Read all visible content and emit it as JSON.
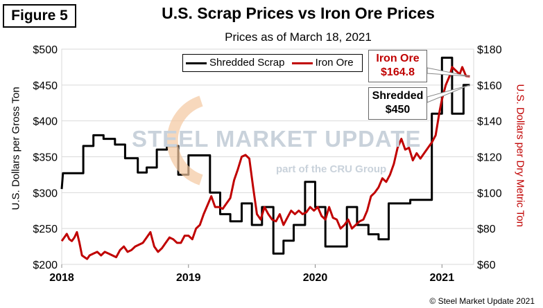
{
  "figure_label": "Figure 5",
  "copyright": "© Steel Market Update 2021",
  "watermark": {
    "brand": "STEEL MARKET UPDATE",
    "tagline": "part of the CRU Group"
  },
  "colors": {
    "scrap": "#000000",
    "ore": "#c00000",
    "grid": "#d9d9d9"
  },
  "callouts": {
    "ore": {
      "name": "Iron Ore",
      "value": "$164.8"
    },
    "scrap": {
      "name": "Shredded",
      "value": "$450"
    }
  },
  "chart_data": {
    "type": "line",
    "title": "U.S. Scrap Prices vs Iron Ore Prices",
    "subtitle": "Prices as of March 18, 2021",
    "ylabel": "U.S. Dollars per Gross Ton",
    "y2label": "U.S. Dollars per Dry Metric Ton",
    "xlim": [
      2018.0,
      2021.25
    ],
    "ylim": [
      200,
      500
    ],
    "y2lim": [
      60,
      180
    ],
    "x_ticks": [
      2018,
      2019,
      2020,
      2021
    ],
    "x_tick_labels": [
      "2018",
      "2019",
      "2020",
      "2021"
    ],
    "y_ticks": [
      200,
      250,
      300,
      350,
      400,
      450,
      500
    ],
    "y_tick_labels": [
      "$200",
      "$250",
      "$300",
      "$350",
      "$400",
      "$450",
      "$500"
    ],
    "y2_ticks": [
      60,
      80,
      100,
      120,
      140,
      160,
      180
    ],
    "y2_tick_labels": [
      "$60",
      "$80",
      "$100",
      "$120",
      "$140",
      "$160",
      "$180"
    ],
    "legend": [
      "Shredded Scrap",
      "Iron Ore"
    ],
    "series": [
      {
        "name": "Shredded Scrap",
        "axis": "left",
        "x": [
          2018.0,
          2018.01,
          2018.17,
          2018.17,
          2018.25,
          2018.25,
          2018.33,
          2018.33,
          2018.42,
          2018.42,
          2018.5,
          2018.5,
          2018.6,
          2018.6,
          2018.67,
          2018.67,
          2018.75,
          2018.75,
          2018.83,
          2018.83,
          2018.92,
          2018.92,
          2019.0,
          2019.0,
          2019.17,
          2019.17,
          2019.25,
          2019.25,
          2019.33,
          2019.33,
          2019.42,
          2019.42,
          2019.5,
          2019.5,
          2019.58,
          2019.58,
          2019.67,
          2019.67,
          2019.75,
          2019.75,
          2019.83,
          2019.83,
          2019.92,
          2019.92,
          2020.0,
          2020.0,
          2020.08,
          2020.08,
          2020.25,
          2020.25,
          2020.33,
          2020.33,
          2020.42,
          2020.42,
          2020.5,
          2020.5,
          2020.58,
          2020.58,
          2020.67,
          2020.67,
          2020.75,
          2020.75,
          2020.92,
          2020.92,
          2021.0,
          2021.0,
          2021.08,
          2021.08,
          2021.17,
          2021.17,
          2021.22
        ],
        "values": [
          305,
          327,
          327,
          365,
          365,
          380,
          380,
          375,
          375,
          367,
          367,
          348,
          348,
          328,
          328,
          335,
          335,
          360,
          360,
          365,
          365,
          325,
          325,
          352,
          352,
          300,
          300,
          270,
          270,
          260,
          260,
          285,
          285,
          255,
          255,
          280,
          280,
          215,
          215,
          233,
          233,
          255,
          255,
          315,
          315,
          280,
          280,
          225,
          225,
          280,
          280,
          255,
          255,
          242,
          242,
          235,
          235,
          285,
          285,
          285,
          285,
          290,
          290,
          410,
          410,
          488,
          488,
          410,
          410,
          450,
          450
        ]
      },
      {
        "name": "Iron Ore",
        "axis": "right",
        "x": [
          2018.0,
          2018.02,
          2018.04,
          2018.06,
          2018.08,
          2018.1,
          2018.12,
          2018.14,
          2018.16,
          2018.18,
          2018.2,
          2018.22,
          2018.25,
          2018.28,
          2018.31,
          2018.34,
          2018.37,
          2018.4,
          2018.43,
          2018.46,
          2018.49,
          2018.52,
          2018.55,
          2018.58,
          2018.61,
          2018.64,
          2018.67,
          2018.7,
          2018.73,
          2018.76,
          2018.79,
          2018.82,
          2018.85,
          2018.88,
          2018.91,
          2018.94,
          2018.97,
          2019.0,
          2019.03,
          2019.06,
          2019.09,
          2019.12,
          2019.15,
          2019.18,
          2019.21,
          2019.24,
          2019.27,
          2019.3,
          2019.33,
          2019.36,
          2019.39,
          2019.42,
          2019.45,
          2019.48,
          2019.51,
          2019.54,
          2019.57,
          2019.6,
          2019.63,
          2019.66,
          2019.69,
          2019.72,
          2019.75,
          2019.78,
          2019.81,
          2019.84,
          2019.87,
          2019.9,
          2019.93,
          2019.96,
          2019.99,
          2020.02,
          2020.05,
          2020.08,
          2020.11,
          2020.14,
          2020.17,
          2020.2,
          2020.23,
          2020.26,
          2020.29,
          2020.32,
          2020.35,
          2020.38,
          2020.41,
          2020.44,
          2020.47,
          2020.5,
          2020.53,
          2020.56,
          2020.59,
          2020.62,
          2020.65,
          2020.68,
          2020.71,
          2020.74,
          2020.77,
          2020.8,
          2020.83,
          2020.86,
          2020.89,
          2020.92,
          2020.95,
          2020.98,
          2021.0,
          2021.03,
          2021.06,
          2021.08,
          2021.11,
          2021.14,
          2021.16,
          2021.19,
          2021.22
        ],
        "values": [
          73,
          75,
          77,
          74,
          73,
          75,
          78,
          72,
          65,
          64,
          63,
          65,
          66,
          67,
          65,
          67,
          66,
          65,
          64,
          68,
          70,
          67,
          68,
          70,
          71,
          72,
          75,
          78,
          70,
          67,
          69,
          72,
          75,
          74,
          72,
          72,
          76,
          76,
          74,
          80,
          82,
          88,
          93,
          98,
          92,
          92,
          91,
          94,
          97,
          107,
          113,
          120,
          121,
          119,
          103,
          88,
          85,
          92,
          88,
          85,
          84,
          88,
          82,
          86,
          90,
          88,
          90,
          88,
          89,
          92,
          90,
          92,
          87,
          85,
          92,
          86,
          85,
          80,
          82,
          85,
          80,
          82,
          84,
          85,
          90,
          98,
          100,
          103,
          108,
          106,
          110,
          116,
          125,
          130,
          124,
          125,
          118,
          122,
          119,
          122,
          125,
          128,
          132,
          145,
          152,
          160,
          165,
          170,
          168,
          166,
          170,
          165,
          164.8
        ]
      }
    ]
  }
}
